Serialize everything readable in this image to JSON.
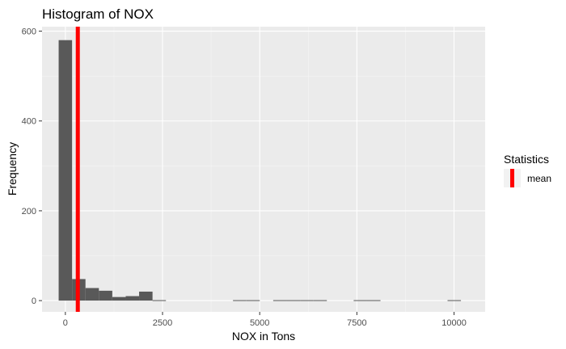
{
  "chart_data": {
    "type": "bar",
    "title": "Histogram of NOX",
    "xlabel": "NOX in Tons",
    "ylabel": "Frequency",
    "xlim": [
      -600,
      10800
    ],
    "ylim": [
      -25,
      610
    ],
    "x_ticks": [
      0,
      2500,
      5000,
      7500,
      10000
    ],
    "x_tick_labels": [
      "0",
      "2500",
      "5000",
      "7500",
      "10000"
    ],
    "y_ticks": [
      0,
      200,
      400,
      600
    ],
    "y_tick_labels": [
      "0",
      "200",
      "400",
      "600"
    ],
    "bin_width": 345,
    "bin_centers": [
      0,
      345,
      690,
      1035,
      1380,
      1725,
      2070,
      2415,
      2760,
      3105,
      3450,
      3795,
      4140,
      4485,
      4830,
      5175,
      5520,
      5865,
      6210,
      6555,
      6900,
      7245,
      7590,
      7935,
      8280,
      8625,
      8970,
      9315,
      9660,
      10005
    ],
    "values": [
      580,
      48,
      28,
      22,
      8,
      10,
      20,
      1,
      0,
      0,
      0,
      0,
      0,
      1,
      1,
      0,
      1,
      1,
      1,
      1,
      0,
      0,
      1,
      1,
      0,
      0,
      0,
      0,
      0,
      1
    ],
    "mean_line": {
      "x": 320,
      "color": "#ff0000"
    },
    "bar_color": "#595959",
    "panel_color": "#ebebeb",
    "grid": true,
    "legend": {
      "title": "Statistics",
      "entries": [
        {
          "label": "mean",
          "color": "#ff0000"
        }
      ],
      "placement": "right"
    }
  }
}
